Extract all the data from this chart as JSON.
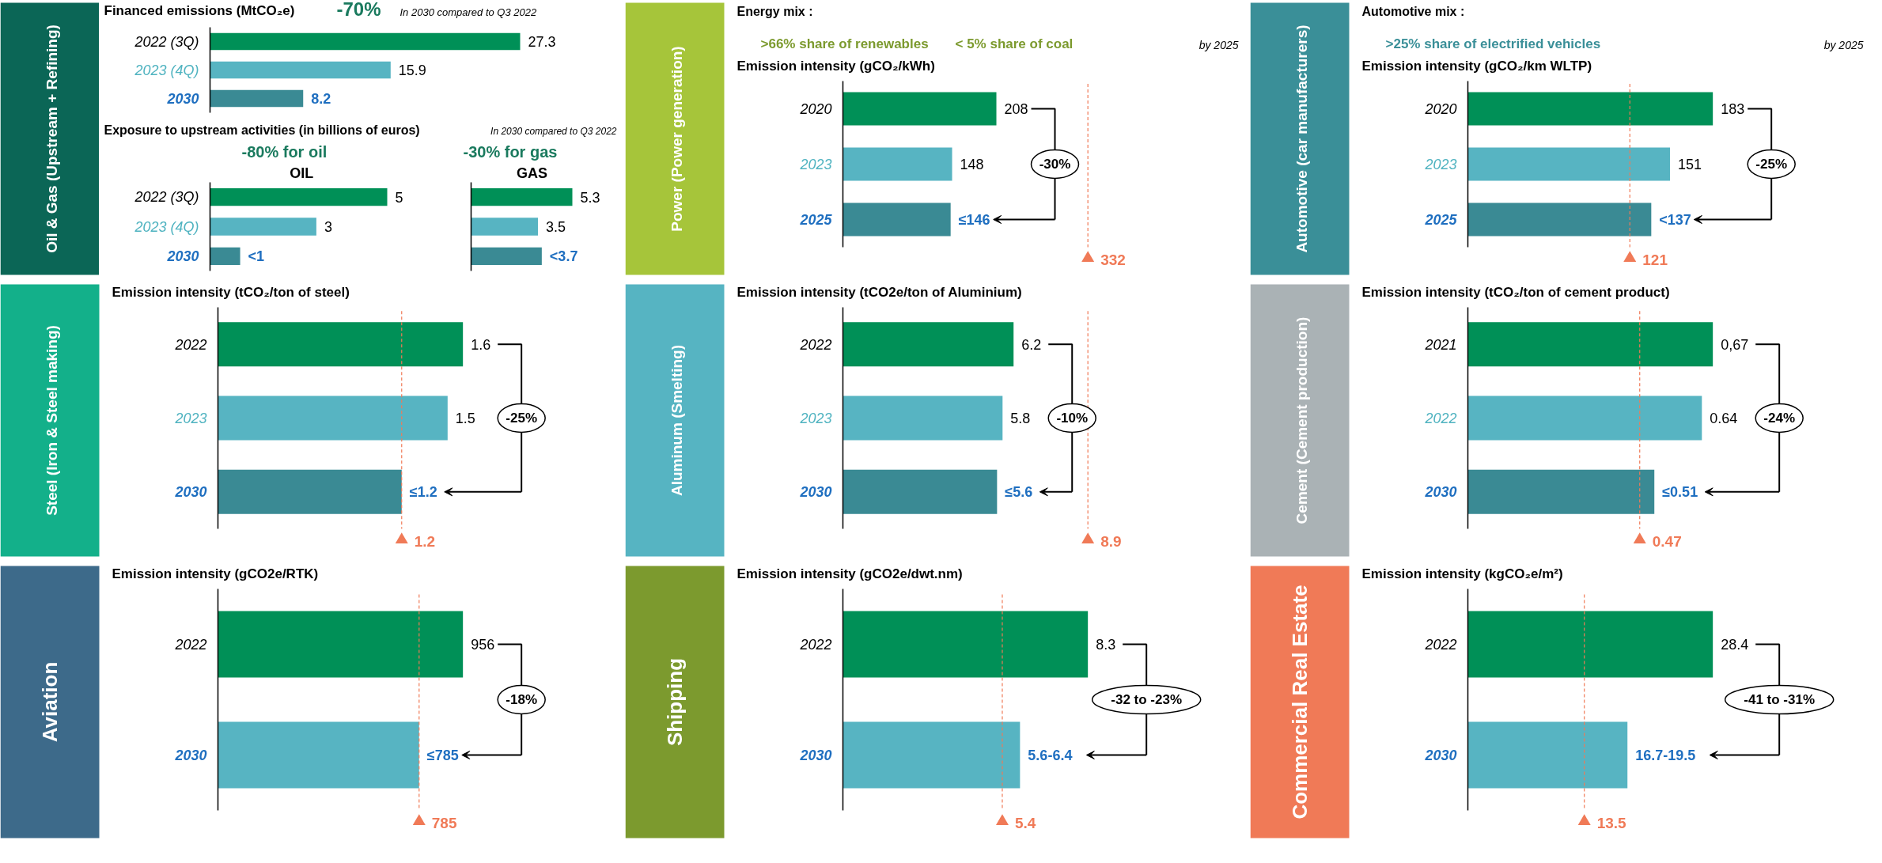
{
  "chart_data": [
    {
      "type": "bar",
      "orientation": "horizontal",
      "title": "Oil & Gas",
      "subtitle": "(Upstream + Refining)",
      "categories": [
        "2022 (3Q)",
        "2023 (4Q)",
        "2030"
      ],
      "values": [
        27.3,
        15.9,
        8.2
      ],
      "value_labels": [
        "27.3",
        "15.9",
        "8.2"
      ],
      "colors": [
        "#009057",
        "#57b4c2",
        "#3a8a94"
      ],
      "annotations": [
        "Financed emissions (MtCO₂e)",
        "-70%",
        "In 2030 compared to Q3 2022"
      ]
    },
    {
      "type": "bar",
      "orientation": "horizontal",
      "title": "OIL",
      "categories": [
        "2022 (3Q)",
        "2023 (4Q)",
        "2030"
      ],
      "values": [
        5,
        3,
        0.85
      ],
      "value_labels": [
        "5",
        "3",
        "<1"
      ],
      "colors": [
        "#009057",
        "#57b4c2",
        "#3a8a94"
      ],
      "annotations": [
        "Exposure to upstream activities (in billions of euros)",
        "-80% for oil"
      ]
    },
    {
      "type": "bar",
      "orientation": "horizontal",
      "title": "GAS",
      "categories": [
        null,
        null,
        null
      ],
      "values": [
        5.3,
        3.5,
        3.7
      ],
      "value_labels": [
        "5.3",
        "3.5",
        "<3.7"
      ],
      "colors": [
        "#009057",
        "#57b4c2",
        "#3a8a94"
      ],
      "annotations": [
        "In 2030 compared to Q3 2022",
        "-30% for gas"
      ]
    },
    {
      "type": "bar",
      "orientation": "horizontal",
      "title": "Power",
      "subtitle": "(Power generation)",
      "categories": [
        "2020",
        "2023",
        "2025"
      ],
      "values": [
        208,
        148,
        146
      ],
      "value_labels": [
        "208",
        "148",
        "≤146"
      ],
      "colors": [
        "#009057",
        "#57b4c2",
        "#3a8a94"
      ],
      "ref_lines": [
        {
          "axis": "x",
          "value": 332,
          "label": "332",
          "color": "#f07a57",
          "line_style": "dashed"
        }
      ],
      "annotations": [
        "Emission intensity (gCO₂/kWh)",
        "Energy mix :",
        ">66% share of renewables",
        "< 5% share of coal",
        "by 2025",
        "-30%"
      ]
    },
    {
      "type": "bar",
      "orientation": "horizontal",
      "title": "Automotive",
      "subtitle": "(car manufacturers)",
      "categories": [
        "2020",
        "2023",
        "2025"
      ],
      "values": [
        183,
        151,
        137
      ],
      "value_labels": [
        "183",
        "151",
        "<137"
      ],
      "colors": [
        "#009057",
        "#57b4c2",
        "#3a8a94"
      ],
      "ref_lines": [
        {
          "axis": "x",
          "value": 121,
          "label": "121",
          "color": "#f07a57",
          "line_style": "dashed"
        }
      ],
      "annotations": [
        "Emission intensity (gCO₂/km WLTP)",
        "Automotive mix :",
        ">25% share of electrified vehicles",
        "by 2025",
        "-25%"
      ]
    },
    {
      "type": "bar",
      "orientation": "horizontal",
      "title": "Steel",
      "subtitle": "(Iron & Steel making)",
      "categories": [
        "2022",
        "2023",
        "2030"
      ],
      "values": [
        1.6,
        1.5,
        1.2
      ],
      "value_labels": [
        "1.6",
        "1.5",
        "≤1.2"
      ],
      "colors": [
        "#009057",
        "#57b4c2",
        "#3a8a94"
      ],
      "ref_lines": [
        {
          "axis": "x",
          "value": 1.2,
          "label": "1.2",
          "color": "#f07a57",
          "line_style": "dashed"
        }
      ],
      "annotations": [
        "Emission intensity (tCO₂/ton of steel)",
        "-25%"
      ]
    },
    {
      "type": "bar",
      "orientation": "horizontal",
      "title": "Aluminum",
      "subtitle": "(Smelting)",
      "categories": [
        "2022",
        "2023",
        "2030"
      ],
      "values": [
        6.2,
        5.8,
        5.6
      ],
      "value_labels": [
        "6.2",
        "5.8",
        "≤5.6"
      ],
      "colors": [
        "#009057",
        "#57b4c2",
        "#3a8a94"
      ],
      "ref_lines": [
        {
          "axis": "x",
          "value": 8.9,
          "label": "8.9",
          "color": "#f07a57",
          "line_style": "dashed"
        }
      ],
      "annotations": [
        "Emission intensity (tCO2e/ton of Aluminium)",
        "-10%"
      ]
    },
    {
      "type": "bar",
      "orientation": "horizontal",
      "title": "Cement",
      "subtitle": "(Cement production)",
      "categories": [
        "2021",
        "2022",
        "2030"
      ],
      "values": [
        0.67,
        0.64,
        0.51
      ],
      "value_labels": [
        "0,67",
        "0.64",
        "≤0.51"
      ],
      "colors": [
        "#009057",
        "#57b4c2",
        "#3a8a94"
      ],
      "ref_lines": [
        {
          "axis": "x",
          "value": 0.47,
          "label": "0.47",
          "color": "#f07a57",
          "line_style": "dashed"
        }
      ],
      "annotations": [
        "Emission intensity (tCO₂/ton of cement product)",
        "-24%"
      ]
    },
    {
      "type": "bar",
      "orientation": "horizontal",
      "title": "Aviation",
      "categories": [
        "2022",
        "2030"
      ],
      "values": [
        956,
        785
      ],
      "value_labels": [
        "956",
        "≤785"
      ],
      "colors": [
        "#009057",
        "#57b4c2"
      ],
      "ref_lines": [
        {
          "axis": "x",
          "value": 785,
          "label": "785",
          "color": "#f07a57",
          "line_style": "dashed"
        }
      ],
      "annotations": [
        "Emission intensity (gCO2e/RTK)",
        "-18%"
      ]
    },
    {
      "type": "bar",
      "orientation": "horizontal",
      "title": "Shipping",
      "categories": [
        "2022",
        "2030"
      ],
      "values": [
        8.3,
        6.0
      ],
      "value_labels": [
        "8.3",
        "5.6-6.4"
      ],
      "colors": [
        "#009057",
        "#57b4c2"
      ],
      "ref_lines": [
        {
          "axis": "x",
          "value": 5.4,
          "label": "5.4",
          "color": "#f07a57",
          "line_style": "dashed"
        }
      ],
      "annotations": [
        "Emission intensity (gCO2e/dwt.nm)",
        "-32 to -23%"
      ]
    },
    {
      "type": "bar",
      "orientation": "horizontal",
      "title": "Commercial Real Estate",
      "categories": [
        "2022",
        "2030"
      ],
      "values": [
        28.4,
        18.5
      ],
      "value_labels": [
        "28.4",
        "16.7-19.5"
      ],
      "colors": [
        "#009057",
        "#57b4c2"
      ],
      "ref_lines": [
        {
          "axis": "x",
          "value": 13.5,
          "label": "13.5",
          "color": "#f07a57",
          "line_style": "dashed"
        }
      ],
      "annotations": [
        "Emission intensity (kgCO₂e/m²)",
        "-41 to -31%"
      ]
    }
  ]
}
